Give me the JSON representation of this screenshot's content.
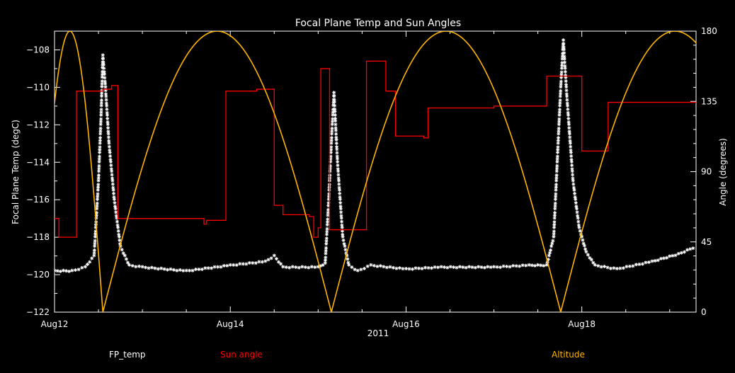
{
  "chart_data": {
    "type": "line",
    "title": "Focal Plane Temp and Sun Angles",
    "xlabel": "2011",
    "ylabel_left": "Focal Plane Temp (degC)",
    "ylabel_right": "Angle (degrees)",
    "x_domain_days": [
      12.0,
      19.3
    ],
    "x_ticks": [
      {
        "day": 12,
        "label": "Aug12"
      },
      {
        "day": 14,
        "label": "Aug14"
      },
      {
        "day": 16,
        "label": "Aug16"
      },
      {
        "day": 18,
        "label": "Aug18"
      }
    ],
    "y_left": {
      "range": [
        -122,
        -107
      ],
      "ticks": [
        -122,
        -120,
        -118,
        -116,
        -114,
        -112,
        -110,
        -108
      ],
      "tick_labels": [
        "−122",
        "−120",
        "−118",
        "−116",
        "−114",
        "−112",
        "−110",
        "−108"
      ]
    },
    "y_right": {
      "range": [
        0,
        180
      ],
      "ticks": [
        0,
        45,
        90,
        135,
        180
      ],
      "tick_labels": [
        "0",
        "45",
        "90",
        "135",
        "180"
      ]
    },
    "grid": false,
    "legend": [
      {
        "label": "FP_temp",
        "color": "#ffffff"
      },
      {
        "label": "Sun angle",
        "color": "#ff0000"
      },
      {
        "label": "Altitude",
        "color": "#ffb400"
      }
    ],
    "series": [
      {
        "name": "FP_temp",
        "axis": "left",
        "style": "asterisk",
        "color": "#ffffff",
        "points": [
          [
            12.0,
            -119.8
          ],
          [
            12.2,
            -119.8
          ],
          [
            12.35,
            -119.6
          ],
          [
            12.45,
            -119.0
          ],
          [
            12.5,
            -115.0
          ],
          [
            12.53,
            -111.5
          ],
          [
            12.55,
            -108.3
          ],
          [
            12.58,
            -110.0
          ],
          [
            12.62,
            -113.0
          ],
          [
            12.68,
            -116.0
          ],
          [
            12.75,
            -118.5
          ],
          [
            12.85,
            -119.5
          ],
          [
            13.0,
            -119.6
          ],
          [
            13.5,
            -119.8
          ],
          [
            14.0,
            -119.5
          ],
          [
            14.4,
            -119.3
          ],
          [
            14.5,
            -119.0
          ],
          [
            14.6,
            -119.6
          ],
          [
            15.0,
            -119.6
          ],
          [
            15.08,
            -119.4
          ],
          [
            15.12,
            -116.0
          ],
          [
            15.16,
            -112.0
          ],
          [
            15.18,
            -110.3
          ],
          [
            15.22,
            -114.0
          ],
          [
            15.28,
            -118.0
          ],
          [
            15.35,
            -119.5
          ],
          [
            15.45,
            -119.8
          ],
          [
            15.6,
            -119.5
          ],
          [
            16.0,
            -119.7
          ],
          [
            16.4,
            -119.6
          ],
          [
            17.0,
            -119.6
          ],
          [
            17.4,
            -119.5
          ],
          [
            17.6,
            -119.5
          ],
          [
            17.68,
            -118.0
          ],
          [
            17.72,
            -114.0
          ],
          [
            17.76,
            -110.0
          ],
          [
            17.79,
            -107.5
          ],
          [
            17.83,
            -110.5
          ],
          [
            17.9,
            -115.0
          ],
          [
            17.97,
            -117.5
          ],
          [
            18.05,
            -118.8
          ],
          [
            18.15,
            -119.5
          ],
          [
            18.4,
            -119.7
          ],
          [
            18.8,
            -119.3
          ],
          [
            19.1,
            -118.9
          ],
          [
            19.3,
            -118.5
          ]
        ]
      },
      {
        "name": "Sun angle",
        "axis": "left",
        "style": "step",
        "color": "#ff0000",
        "points": [
          [
            12.0,
            -117.0
          ],
          [
            12.05,
            -118.0
          ],
          [
            12.25,
            -110.2
          ],
          [
            12.55,
            -110.1
          ],
          [
            12.65,
            -109.9
          ],
          [
            12.72,
            -117.0
          ],
          [
            13.7,
            -117.0
          ],
          [
            13.7,
            -117.3
          ],
          [
            13.73,
            -117.1
          ],
          [
            13.9,
            -117.1
          ],
          [
            13.95,
            -110.2
          ],
          [
            14.3,
            -110.1
          ],
          [
            14.4,
            -110.1
          ],
          [
            14.5,
            -116.3
          ],
          [
            14.6,
            -116.8
          ],
          [
            14.9,
            -116.9
          ],
          [
            14.95,
            -118.0
          ],
          [
            15.0,
            -117.5
          ],
          [
            15.03,
            -109.0
          ],
          [
            15.1,
            -109.0
          ],
          [
            15.13,
            -117.6
          ],
          [
            15.5,
            -117.6
          ],
          [
            15.55,
            -108.6
          ],
          [
            15.75,
            -108.6
          ],
          [
            15.77,
            -110.2
          ],
          [
            15.86,
            -110.2
          ],
          [
            15.88,
            -112.6
          ],
          [
            16.2,
            -112.7
          ],
          [
            16.25,
            -111.1
          ],
          [
            17.0,
            -111.0
          ],
          [
            17.57,
            -111.0
          ],
          [
            17.6,
            -109.4
          ],
          [
            17.93,
            -109.4
          ],
          [
            18.0,
            -113.4
          ],
          [
            18.25,
            -113.4
          ],
          [
            18.3,
            -110.8
          ],
          [
            19.3,
            -110.8
          ]
        ]
      },
      {
        "name": "Altitude",
        "axis": "right",
        "style": "line",
        "color": "#ffb400",
        "arches": [
          [
            11.8,
            12.55
          ],
          [
            12.55,
            15.15
          ],
          [
            15.15,
            17.76
          ],
          [
            17.76,
            20.36
          ]
        ],
        "peak": 180
      }
    ]
  }
}
